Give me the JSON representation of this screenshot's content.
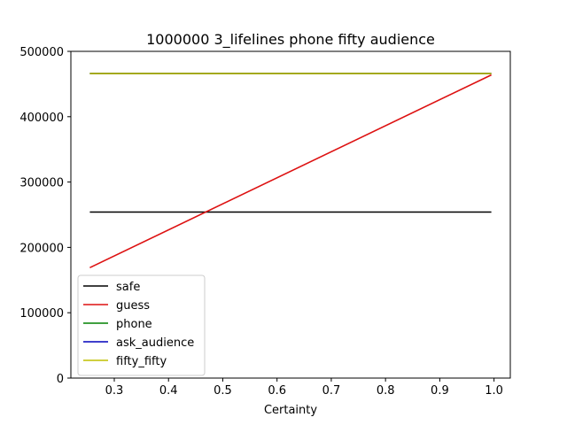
{
  "chart_data": {
    "type": "line",
    "title": "1000000 3_lifelines phone fifty audience",
    "xlabel": "Certainty",
    "ylabel": "",
    "xlim": [
      0.22,
      1.03
    ],
    "ylim": [
      0,
      500000
    ],
    "xticks": [
      0.3,
      0.4,
      0.5,
      0.6,
      0.7,
      0.8,
      0.9,
      1.0
    ],
    "xtick_labels": [
      "0.3",
      "0.4",
      "0.5",
      "0.6",
      "0.7",
      "0.8",
      "0.9",
      "1.0"
    ],
    "yticks": [
      0,
      100000,
      200000,
      300000,
      400000,
      500000
    ],
    "ytick_labels": [
      "0",
      "100000",
      "200000",
      "300000",
      "400000",
      "500000"
    ],
    "grid": false,
    "legend_position": "lower-left",
    "series": [
      {
        "name": "safe",
        "color": "#000000",
        "x": [
          0.255,
          0.995
        ],
        "y": [
          254000,
          254000
        ]
      },
      {
        "name": "guess",
        "color": "#dd1111",
        "x": [
          0.255,
          0.995
        ],
        "y": [
          169000,
          464000
        ]
      },
      {
        "name": "phone",
        "color": "#008000",
        "x": [
          0.255,
          0.995
        ],
        "y": [
          466000,
          466000
        ]
      },
      {
        "name": "ask_audience",
        "color": "#0000bb",
        "x": [
          0.255,
          0.995
        ],
        "y": [
          466000,
          466000
        ]
      },
      {
        "name": "fifty_fifty",
        "color": "#bfbf00",
        "x": [
          0.255,
          0.995
        ],
        "y": [
          466000,
          466000
        ]
      }
    ]
  }
}
